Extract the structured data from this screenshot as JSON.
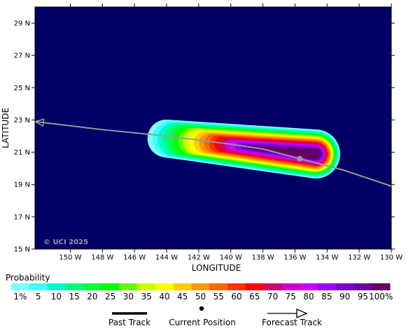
{
  "map": {
    "background_color": "#000066",
    "credit": "© UCI 2025",
    "lat_ticks": [
      {
        "value": 29,
        "label": "29 N"
      },
      {
        "value": 27,
        "label": "27 N"
      },
      {
        "value": 25,
        "label": "25 N"
      },
      {
        "value": 23,
        "label": "23 N"
      },
      {
        "value": 21,
        "label": "21 N"
      },
      {
        "value": 19,
        "label": "19 N"
      },
      {
        "value": 17,
        "label": "17 N"
      },
      {
        "value": 15,
        "label": "15 N"
      }
    ],
    "lon_ticks": [
      {
        "value": -150,
        "label": "150 W"
      },
      {
        "value": -148,
        "label": "148 W"
      },
      {
        "value": -146,
        "label": "146 W"
      },
      {
        "value": -144,
        "label": "144 W"
      },
      {
        "value": -142,
        "label": "142 W"
      },
      {
        "value": -140,
        "label": "140 W"
      },
      {
        "value": -138,
        "label": "138 W"
      },
      {
        "value": -136,
        "label": "136 W"
      },
      {
        "value": -134,
        "label": "134 W"
      },
      {
        "value": -132,
        "label": "132 W"
      },
      {
        "value": -130,
        "label": "130 W"
      }
    ],
    "xlabel": "LONGITUDE",
    "ylabel": "LATITUDE",
    "lon_range": [
      -152.2,
      -130
    ],
    "lat_range": [
      15,
      30
    ],
    "past_track": [
      [
        -152.2,
        22.9
      ],
      [
        -148,
        22.4
      ],
      [
        -144,
        22.0
      ],
      [
        -140,
        21.5
      ],
      [
        -138,
        21.2
      ],
      [
        -135.7,
        20.6
      ]
    ],
    "current_position": {
      "lon": -135.7,
      "lat": 20.6
    },
    "forecast_track": [
      [
        -135.7,
        20.6
      ],
      [
        -133,
        19.9
      ],
      [
        -130,
        18.9
      ]
    ],
    "probability_field": {
      "core_lon": -134.8,
      "core_lat": 20.9,
      "tail_lon": -144.5,
      "tail_lat": 21.9,
      "levels": [
        1,
        5,
        10,
        15,
        20,
        25,
        30,
        35,
        40,
        45,
        50,
        55,
        60,
        65,
        70,
        75,
        80,
        85,
        90,
        95,
        100
      ]
    }
  },
  "legend": {
    "title": "Probability",
    "colors": [
      "#80ffff",
      "#40ffff",
      "#00ffcc",
      "#00ff80",
      "#00ff40",
      "#00ff00",
      "#66ff00",
      "#ccff00",
      "#ffff00",
      "#ffcc00",
      "#ff9900",
      "#ff6600",
      "#ff3300",
      "#ff0000",
      "#cc0066",
      "#cc00cc",
      "#cc00ff",
      "#9900ff",
      "#7700cc",
      "#660099",
      "#660066"
    ],
    "labels": [
      "1%",
      "5",
      "10",
      "15",
      "20",
      "25",
      "30",
      "35",
      "40",
      "45",
      "50",
      "55",
      "60",
      "65",
      "70",
      "75",
      "80",
      "85",
      "90",
      "95",
      "100%"
    ]
  },
  "track_legend": {
    "past": "Past Track",
    "current": "Current Position",
    "forecast": "Forecast Track"
  },
  "colors": {
    "track": "#9a9a9a"
  }
}
